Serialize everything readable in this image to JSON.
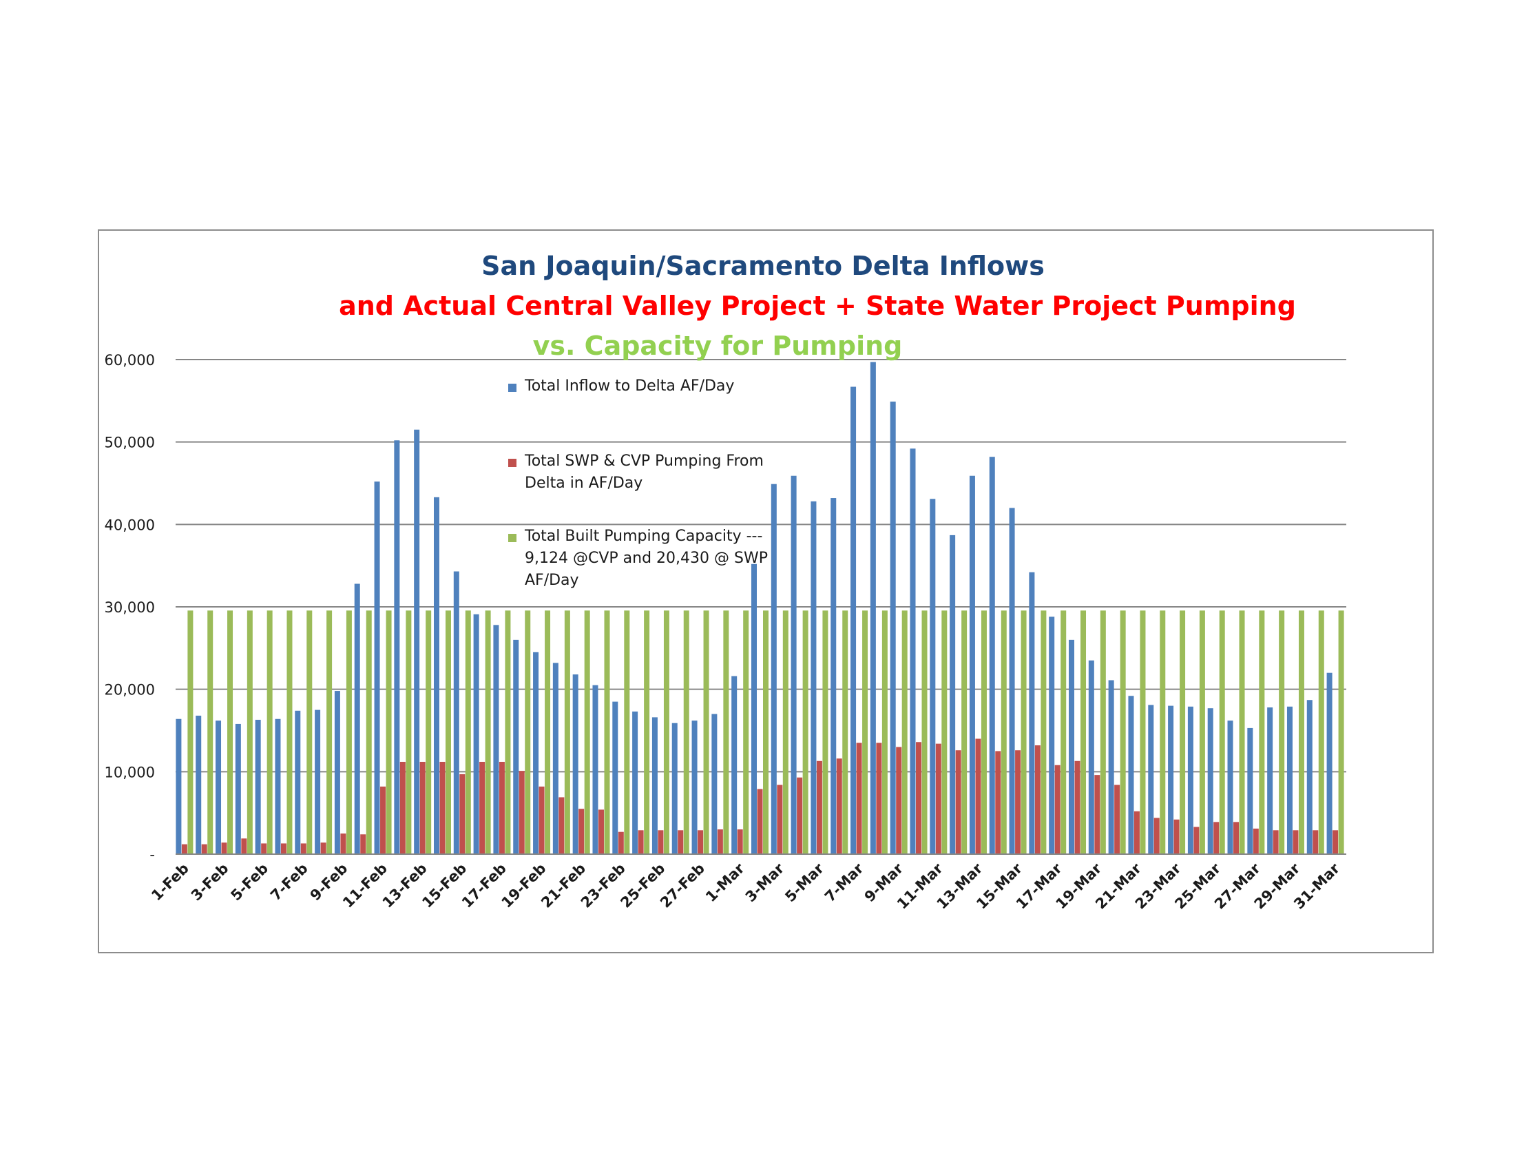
{
  "chart_data": {
    "type": "bar",
    "title": "San Joaquin/Sacramento Delta Inflows",
    "subtitle_1": "and Actual Central Valley Project + State Water Project Pumping",
    "subtitle_2": "vs.  Capacity for Pumping",
    "xlabel": "",
    "ylabel": "",
    "ylim": [
      0,
      60000
    ],
    "yticks": [
      {
        "value": 0,
        "label": "-"
      },
      {
        "value": 10000,
        "label": "10,000"
      },
      {
        "value": 20000,
        "label": "20,000"
      },
      {
        "value": 30000,
        "label": "30,000"
      },
      {
        "value": 40000,
        "label": "40,000"
      },
      {
        "value": 50000,
        "label": "50,000"
      },
      {
        "value": 60000,
        "label": "60,000"
      }
    ],
    "grid": true,
    "categories": [
      "1-Feb",
      "2-Feb",
      "3-Feb",
      "4-Feb",
      "5-Feb",
      "6-Feb",
      "7-Feb",
      "8-Feb",
      "9-Feb",
      "10-Feb",
      "11-Feb",
      "12-Feb",
      "13-Feb",
      "14-Feb",
      "15-Feb",
      "16-Feb",
      "17-Feb",
      "18-Feb",
      "19-Feb",
      "20-Feb",
      "21-Feb",
      "22-Feb",
      "23-Feb",
      "24-Feb",
      "25-Feb",
      "26-Feb",
      "27-Feb",
      "28-Feb",
      "1-Mar",
      "2-Mar",
      "3-Mar",
      "4-Mar",
      "5-Mar",
      "6-Mar",
      "7-Mar",
      "8-Mar",
      "9-Mar",
      "10-Mar",
      "11-Mar",
      "12-Mar",
      "13-Mar",
      "14-Mar",
      "15-Mar",
      "16-Mar",
      "17-Mar",
      "18-Mar",
      "19-Mar",
      "20-Mar",
      "21-Mar",
      "22-Mar",
      "23-Mar",
      "24-Mar",
      "25-Mar",
      "26-Mar",
      "27-Mar",
      "28-Mar",
      "29-Mar",
      "30-Mar",
      "31-Mar"
    ],
    "xtick_labels": [
      "1-Feb",
      "3-Feb",
      "5-Feb",
      "7-Feb",
      "9-Feb",
      "11-Feb",
      "13-Feb",
      "15-Feb",
      "17-Feb",
      "19-Feb",
      "21-Feb",
      "23-Feb",
      "25-Feb",
      "27-Feb",
      "1-Mar",
      "3-Mar",
      "5-Mar",
      "7-Mar",
      "9-Mar",
      "11-Mar",
      "13-Mar",
      "15-Mar",
      "17-Mar",
      "19-Mar",
      "21-Mar",
      "23-Mar",
      "25-Mar",
      "27-Mar",
      "29-Mar",
      "31-Mar"
    ],
    "series": [
      {
        "name": "Total Inflow to Delta AF/Day",
        "color": "#4f81bd",
        "values": [
          16400,
          16800,
          16200,
          15800,
          16300,
          16400,
          17400,
          17500,
          19800,
          32800,
          45200,
          50200,
          51500,
          43300,
          34300,
          29100,
          27800,
          26000,
          24500,
          23200,
          21800,
          20500,
          18500,
          17300,
          16600,
          15900,
          16200,
          17000,
          21600,
          35200,
          44900,
          45900,
          42800,
          43200,
          56700,
          59700,
          54900,
          49200,
          43100,
          38700,
          45900,
          48200,
          42000,
          34200,
          28800,
          26000,
          23500,
          21100,
          19200,
          18100,
          18000,
          17900,
          17700,
          16200,
          15300,
          17800,
          17900,
          18700,
          22000
        ]
      },
      {
        "name": "Total SWP & CVP Pumping From Delta in AF/Day",
        "color": "#c0504d",
        "values": [
          1200,
          1200,
          1400,
          1900,
          1300,
          1300,
          1300,
          1400,
          2500,
          2400,
          8200,
          11200,
          11200,
          11200,
          9700,
          11200,
          11200,
          10100,
          8200,
          6900,
          5500,
          5400,
          2700,
          2900,
          2900,
          2900,
          2900,
          3000,
          3000,
          7900,
          8400,
          9300,
          11300,
          11600,
          13500,
          13500,
          13000,
          13600,
          13400,
          12600,
          14000,
          12500,
          12600,
          13200,
          10800,
          11300,
          9600,
          8400,
          5200,
          4400,
          4200,
          3300,
          3900,
          3900,
          3100,
          2900,
          2900,
          2900,
          2900
        ]
      },
      {
        "name": "Total Built Pumping Capacity  --- 9,124 @CVP and 20,430 @ SWP AF/Day",
        "color": "#9bbb59",
        "values": [
          29554,
          29554,
          29554,
          29554,
          29554,
          29554,
          29554,
          29554,
          29554,
          29554,
          29554,
          29554,
          29554,
          29554,
          29554,
          29554,
          29554,
          29554,
          29554,
          29554,
          29554,
          29554,
          29554,
          29554,
          29554,
          29554,
          29554,
          29554,
          29554,
          29554,
          29554,
          29554,
          29554,
          29554,
          29554,
          29554,
          29554,
          29554,
          29554,
          29554,
          29554,
          29554,
          29554,
          29554,
          29554,
          29554,
          29554,
          29554,
          29554,
          29554,
          29554,
          29554,
          29554,
          29554,
          29554,
          29554,
          29554,
          29554,
          29554
        ]
      }
    ],
    "legend": {
      "placement": "inside-top-left",
      "entries": [
        {
          "label": "Total Inflow to Delta AF/Day",
          "color": "#4f81bd"
        },
        {
          "label": "Total SWP & CVP Pumping From Delta in AF/Day",
          "color": "#c0504d"
        },
        {
          "label": "Total Built Pumping Capacity  --- 9,124 @CVP and 20,430 @ SWP AF/Day",
          "color": "#9bbb59"
        }
      ]
    }
  }
}
